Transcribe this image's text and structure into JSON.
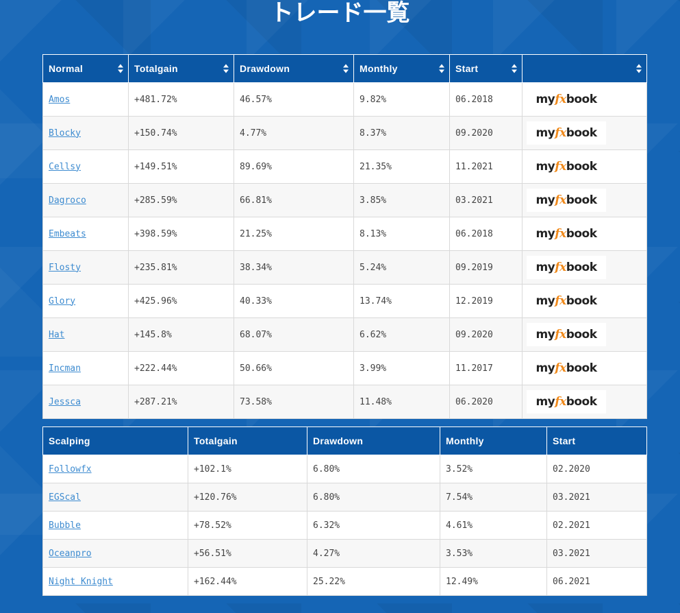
{
  "page": {
    "title": "トレード一覧"
  },
  "normal_table": {
    "headers": [
      "Normal",
      "Totalgain",
      "Drawdown",
      "Monthly",
      "Start",
      ""
    ],
    "logo": {
      "part1": "my",
      "part2": "fx",
      "part3": "book",
      "accent_color": "#f08a1c"
    },
    "rows": [
      {
        "name": "Amos",
        "totalgain": "+481.72%",
        "drawdown": "46.57%",
        "monthly": "9.82%",
        "start": "06.2018"
      },
      {
        "name": "Blocky",
        "totalgain": "+150.74%",
        "drawdown": "4.77%",
        "monthly": "8.37%",
        "start": "09.2020"
      },
      {
        "name": "Cellsy",
        "totalgain": "+149.51%",
        "drawdown": "89.69%",
        "monthly": "21.35%",
        "start": "11.2021"
      },
      {
        "name": "Dagroco",
        "totalgain": "+285.59%",
        "drawdown": "66.81%",
        "monthly": "3.85%",
        "start": "03.2021"
      },
      {
        "name": "Embeats",
        "totalgain": "+398.59%",
        "drawdown": "21.25%",
        "monthly": "8.13%",
        "start": "06.2018"
      },
      {
        "name": "Flosty",
        "totalgain": "+235.81%",
        "drawdown": "38.34%",
        "monthly": "5.24%",
        "start": "09.2019"
      },
      {
        "name": "Glory",
        "totalgain": "+425.96%",
        "drawdown": "40.33%",
        "monthly": "13.74%",
        "start": "12.2019"
      },
      {
        "name": "Hat",
        "totalgain": "+145.8%",
        "drawdown": "68.07%",
        "monthly": "6.62%",
        "start": "09.2020"
      },
      {
        "name": "Incman",
        "totalgain": "+222.44%",
        "drawdown": "50.66%",
        "monthly": "3.99%",
        "start": "11.2017"
      },
      {
        "name": "Jessca",
        "totalgain": "+287.21%",
        "drawdown": "73.58%",
        "monthly": "11.48%",
        "start": "06.2020"
      }
    ]
  },
  "scalping_table": {
    "headers": [
      "Scalping",
      "Totalgain",
      "Drawdown",
      "Monthly",
      "Start"
    ],
    "rows": [
      {
        "name": "Followfx",
        "totalgain": "+102.1%",
        "drawdown": "6.80%",
        "monthly": "3.52%",
        "start": "02.2020"
      },
      {
        "name": "EGScal",
        "totalgain": "+120.76%",
        "drawdown": "6.80%",
        "monthly": "7.54%",
        "start": "03.2021"
      },
      {
        "name": "Bubble",
        "totalgain": "+78.52%",
        "drawdown": "6.32%",
        "monthly": "4.61%",
        "start": "02.2021"
      },
      {
        "name": "Oceanpro",
        "totalgain": "+56.51%",
        "drawdown": "4.27%",
        "monthly": "3.53%",
        "start": "03.2021"
      },
      {
        "name": "Night Knight",
        "totalgain": "+162.44%",
        "drawdown": "25.22%",
        "monthly": "12.49%",
        "start": "06.2021"
      }
    ]
  },
  "colors": {
    "background": "#1565b5",
    "header": "#0b57a4",
    "link": "#3d8bd0"
  }
}
